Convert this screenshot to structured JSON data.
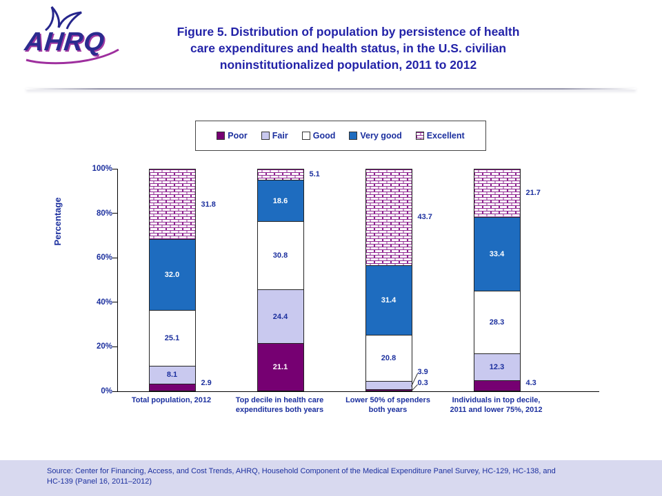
{
  "header": {
    "logo": {
      "text": "AHRQ"
    },
    "title_lines": [
      "Figure 5. Distribution of population by persistence of health",
      "care expenditures and health status, in the U.S. civilian",
      "noninstitutionalized population, 2011 to 2012"
    ]
  },
  "legend": {
    "items": [
      {
        "label": "Poor",
        "swatch": "solid",
        "color": "#760072"
      },
      {
        "label": "Fair",
        "swatch": "solid",
        "color": "#C9C9EF"
      },
      {
        "label": "Good",
        "swatch": "solid",
        "color": "#FFFFFF"
      },
      {
        "label": "Very good",
        "swatch": "solid",
        "color": "#1E6CBF"
      },
      {
        "label": "Excellent",
        "swatch": "brick",
        "color": "#8E2490"
      }
    ]
  },
  "chart_data": {
    "type": "bar",
    "stacked": true,
    "title": "",
    "ylabel": "Percentage",
    "ylim": [
      0,
      100
    ],
    "grid": false,
    "legend_position": "top",
    "y_tick_labels": [
      "0%",
      "20%",
      "40%",
      "60%",
      "80%",
      "100%"
    ],
    "categories": [
      {
        "lines": [
          "Total population, 2012"
        ]
      },
      {
        "lines": [
          "Top decile in health care",
          "expenditures both years"
        ]
      },
      {
        "lines": [
          "Lower 50% of spenders",
          "both years"
        ]
      },
      {
        "lines": [
          "Individuals in top decile,",
          "2011 and lower 75%, 2012"
        ]
      }
    ],
    "series": [
      {
        "name": "Poor",
        "fill": "solid",
        "color": "#760072",
        "label_color": "#FFFFFF",
        "values": [
          2.9,
          21.1,
          0.3,
          4.3
        ],
        "labels": [
          "2.9",
          "21.1",
          "0.3",
          "4.3"
        ],
        "label_outside": [
          true,
          false,
          true,
          true
        ]
      },
      {
        "name": "Fair",
        "fill": "solid",
        "color": "#C9C9EF",
        "label_color": "#1B2F9E",
        "values": [
          8.1,
          24.4,
          3.9,
          12.3
        ],
        "labels": [
          "8.1",
          "24.4",
          "3.9",
          "12.3"
        ],
        "label_outside": [
          false,
          false,
          true,
          false
        ]
      },
      {
        "name": "Good",
        "fill": "solid",
        "color": "#FFFFFF",
        "label_color": "#1B2F9E",
        "values": [
          25.1,
          30.8,
          20.8,
          28.3
        ],
        "labels": [
          "25.1",
          "30.8",
          "20.8",
          "28.3"
        ],
        "label_outside": [
          false,
          false,
          false,
          false
        ]
      },
      {
        "name": "Very good",
        "fill": "solid",
        "color": "#1E6CBF",
        "label_color": "#FFFFFF",
        "values": [
          32.0,
          18.6,
          31.4,
          33.4
        ],
        "labels": [
          "32.0",
          "18.6",
          "31.4",
          "33.4"
        ],
        "label_outside": [
          false,
          false,
          false,
          false
        ]
      },
      {
        "name": "Excellent",
        "fill": "brick",
        "color": "#8E2490",
        "label_color": "#1B2F9E",
        "values": [
          31.8,
          5.1,
          43.7,
          21.7
        ],
        "labels": [
          "31.8",
          "5.1",
          "43.7",
          "21.7"
        ],
        "label_outside": [
          true,
          true,
          true,
          true
        ]
      }
    ]
  },
  "source": {
    "lines": [
      "Source: Center for Financing, Access, and Cost Trends, AHRQ, Household Component of the Medical Expenditure Panel Survey, HC-129, HC-138, and",
      "HC-139 (Panel 16, 2011–2012)"
    ]
  },
  "colors": {
    "title_text": "#2323A8",
    "chart_text": "#1B2F9E",
    "axis": "#000000",
    "source_band": "#D8D9EF",
    "brick_line": "#8E2490"
  }
}
